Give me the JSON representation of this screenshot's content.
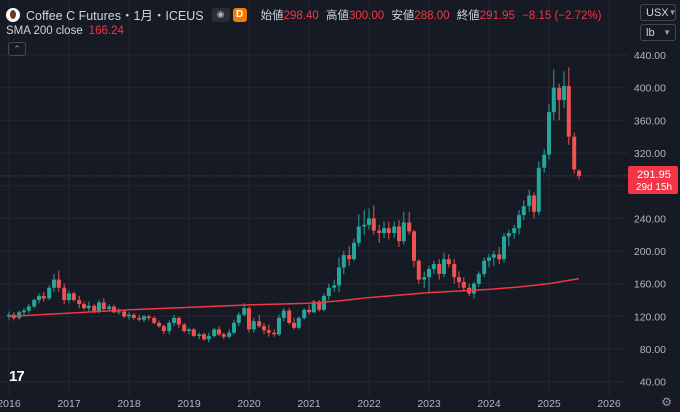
{
  "header": {
    "symbol_title": "Coffee C Futures・1月・ICEUS",
    "d_badge": "D",
    "ohlc": [
      {
        "label": "始値",
        "value": "298.40"
      },
      {
        "label": "高値",
        "value": "300.00"
      },
      {
        "label": "安値",
        "value": "288.00"
      },
      {
        "label": "終値",
        "value": "291.95"
      }
    ],
    "change": "−8.15 (−2.72%)"
  },
  "indicator": {
    "label": "SMA 200 close",
    "value": "166.24"
  },
  "axis_controls": {
    "currency": "USX",
    "unit": "lb"
  },
  "price_tag": {
    "value": "291.95",
    "countdown": "29d 15h"
  },
  "colors": {
    "up": "#26a69a",
    "down": "#ef5350",
    "sma": "#f23645",
    "background": "#161a25",
    "grid": "#222631"
  },
  "icons": {
    "symbol": "coffee-logo-icon",
    "eye": "eye-icon",
    "logo": "tradingview-logo-icon",
    "settings": "gear-icon",
    "collapse": "chevron-up-icon"
  },
  "logo_text": "17",
  "chart_data": {
    "type": "candlestick",
    "interval": "1 month",
    "y_ticks": [
      "440.00",
      "400.00",
      "360.00",
      "320.00",
      "280.00",
      "240.00",
      "200.00",
      "160.00",
      "120.00",
      "80.00",
      "40.00"
    ],
    "x_ticks": [
      "2016",
      "2017",
      "2018",
      "2019",
      "2020",
      "2021",
      "2022",
      "2023",
      "2024",
      "2025",
      "2026"
    ],
    "ylim": [
      20,
      460
    ],
    "grid": true,
    "series": [
      {
        "name": "Coffee C Futures",
        "candles": [
          [
            2016.0,
            120,
            126,
            116,
            122
          ],
          [
            2016.08,
            122,
            125,
            115,
            118
          ],
          [
            2016.17,
            118,
            127,
            116,
            125
          ],
          [
            2016.25,
            125,
            130,
            122,
            127
          ],
          [
            2016.33,
            127,
            135,
            124,
            132
          ],
          [
            2016.42,
            132,
            142,
            130,
            140
          ],
          [
            2016.5,
            140,
            148,
            136,
            145
          ],
          [
            2016.58,
            145,
            150,
            138,
            142
          ],
          [
            2016.67,
            142,
            158,
            140,
            155
          ],
          [
            2016.75,
            155,
            172,
            150,
            165
          ],
          [
            2016.83,
            165,
            176,
            150,
            155
          ],
          [
            2016.92,
            155,
            160,
            135,
            140
          ],
          [
            2017.0,
            140,
            152,
            136,
            148
          ],
          [
            2017.08,
            148,
            150,
            138,
            140
          ],
          [
            2017.17,
            140,
            145,
            130,
            135
          ],
          [
            2017.25,
            135,
            138,
            128,
            130
          ],
          [
            2017.33,
            130,
            138,
            126,
            133
          ],
          [
            2017.42,
            133,
            135,
            124,
            126
          ],
          [
            2017.5,
            126,
            140,
            124,
            137
          ],
          [
            2017.58,
            137,
            142,
            126,
            129
          ],
          [
            2017.67,
            129,
            135,
            126,
            132
          ],
          [
            2017.75,
            132,
            134,
            124,
            125
          ],
          [
            2017.83,
            125,
            130,
            122,
            126
          ],
          [
            2017.92,
            126,
            128,
            118,
            120
          ],
          [
            2018.0,
            120,
            125,
            116,
            122
          ],
          [
            2018.08,
            122,
            124,
            116,
            118
          ],
          [
            2018.17,
            118,
            122,
            114,
            116
          ],
          [
            2018.25,
            116,
            122,
            113,
            120
          ],
          [
            2018.33,
            120,
            122,
            115,
            118
          ],
          [
            2018.42,
            118,
            120,
            110,
            112
          ],
          [
            2018.5,
            112,
            115,
            106,
            108
          ],
          [
            2018.58,
            108,
            110,
            98,
            102
          ],
          [
            2018.67,
            102,
            115,
            98,
            112
          ],
          [
            2018.75,
            112,
            122,
            108,
            118
          ],
          [
            2018.83,
            118,
            120,
            106,
            110
          ],
          [
            2018.92,
            110,
            112,
            100,
            102
          ],
          [
            2019.0,
            102,
            106,
            98,
            104
          ],
          [
            2019.08,
            104,
            106,
            95,
            96
          ],
          [
            2019.17,
            96,
            100,
            92,
            98
          ],
          [
            2019.25,
            98,
            100,
            90,
            92
          ],
          [
            2019.33,
            92,
            100,
            88,
            96
          ],
          [
            2019.42,
            96,
            106,
            94,
            104
          ],
          [
            2019.5,
            104,
            108,
            96,
            98
          ],
          [
            2019.58,
            98,
            100,
            92,
            95
          ],
          [
            2019.67,
            95,
            104,
            93,
            100
          ],
          [
            2019.75,
            100,
            116,
            98,
            112
          ],
          [
            2019.83,
            112,
            125,
            108,
            122
          ],
          [
            2019.92,
            122,
            136,
            120,
            130
          ],
          [
            2020.0,
            130,
            132,
            100,
            104
          ],
          [
            2020.08,
            104,
            118,
            100,
            114
          ],
          [
            2020.17,
            114,
            122,
            106,
            108
          ],
          [
            2020.25,
            108,
            112,
            98,
            103
          ],
          [
            2020.33,
            103,
            110,
            95,
            100
          ],
          [
            2020.42,
            100,
            104,
            95,
            98
          ],
          [
            2020.5,
            98,
            122,
            96,
            118
          ],
          [
            2020.58,
            118,
            130,
            114,
            127
          ],
          [
            2020.67,
            127,
            130,
            110,
            112
          ],
          [
            2020.75,
            112,
            118,
            104,
            106
          ],
          [
            2020.83,
            106,
            120,
            104,
            118
          ],
          [
            2020.92,
            118,
            130,
            116,
            128
          ],
          [
            2021.0,
            128,
            134,
            122,
            125
          ],
          [
            2021.08,
            125,
            140,
            124,
            138
          ],
          [
            2021.17,
            138,
            140,
            126,
            128
          ],
          [
            2021.25,
            128,
            148,
            126,
            145
          ],
          [
            2021.33,
            145,
            160,
            140,
            155
          ],
          [
            2021.42,
            155,
            165,
            150,
            158
          ],
          [
            2021.5,
            158,
            192,
            150,
            180
          ],
          [
            2021.58,
            180,
            200,
            172,
            195
          ],
          [
            2021.67,
            195,
            206,
            182,
            190
          ],
          [
            2021.75,
            190,
            215,
            188,
            210
          ],
          [
            2021.83,
            210,
            245,
            205,
            230
          ],
          [
            2021.92,
            230,
            250,
            220,
            232
          ],
          [
            2022.0,
            232,
            252,
            226,
            240
          ],
          [
            2022.08,
            240,
            256,
            220,
            225
          ],
          [
            2022.17,
            225,
            232,
            210,
            222
          ],
          [
            2022.25,
            222,
            236,
            216,
            228
          ],
          [
            2022.33,
            228,
            236,
            214,
            222
          ],
          [
            2022.42,
            222,
            236,
            216,
            230
          ],
          [
            2022.5,
            230,
            238,
            205,
            212
          ],
          [
            2022.58,
            212,
            248,
            208,
            235
          ],
          [
            2022.67,
            235,
            248,
            220,
            224
          ],
          [
            2022.75,
            224,
            226,
            180,
            188
          ],
          [
            2022.83,
            188,
            190,
            160,
            165
          ],
          [
            2022.92,
            165,
            175,
            155,
            168
          ],
          [
            2023.0,
            168,
            182,
            150,
            178
          ],
          [
            2023.08,
            178,
            188,
            172,
            184
          ],
          [
            2023.17,
            184,
            190,
            165,
            172
          ],
          [
            2023.25,
            172,
            198,
            168,
            190
          ],
          [
            2023.33,
            190,
            196,
            180,
            184
          ],
          [
            2023.42,
            184,
            190,
            160,
            168
          ],
          [
            2023.5,
            168,
            175,
            155,
            162
          ],
          [
            2023.58,
            162,
            168,
            150,
            155
          ],
          [
            2023.67,
            155,
            160,
            145,
            148
          ],
          [
            2023.75,
            148,
            162,
            142,
            160
          ],
          [
            2023.83,
            160,
            175,
            156,
            172
          ],
          [
            2023.92,
            172,
            192,
            168,
            188
          ],
          [
            2024.0,
            188,
            196,
            180,
            192
          ],
          [
            2024.08,
            192,
            200,
            182,
            196
          ],
          [
            2024.17,
            196,
            205,
            184,
            190
          ],
          [
            2024.25,
            190,
            222,
            186,
            218
          ],
          [
            2024.33,
            218,
            226,
            206,
            222
          ],
          [
            2024.42,
            222,
            232,
            215,
            228
          ],
          [
            2024.5,
            228,
            250,
            220,
            244
          ],
          [
            2024.58,
            244,
            262,
            238,
            255
          ],
          [
            2024.67,
            255,
            275,
            248,
            268
          ],
          [
            2024.75,
            268,
            272,
            240,
            248
          ],
          [
            2024.83,
            248,
            310,
            244,
            302
          ],
          [
            2024.92,
            302,
            325,
            296,
            318
          ],
          [
            2025.0,
            318,
            380,
            312,
            370
          ],
          [
            2025.08,
            370,
            422,
            360,
            400
          ],
          [
            2025.17,
            400,
            405,
            360,
            385
          ],
          [
            2025.25,
            385,
            420,
            375,
            402
          ],
          [
            2025.33,
            402,
            425,
            330,
            340
          ],
          [
            2025.42,
            340,
            345,
            295,
            300
          ],
          [
            2025.5,
            298.4,
            300.0,
            288.0,
            291.95
          ]
        ]
      },
      {
        "name": "SMA 200 close",
        "points": [
          [
            2016.0,
            120
          ],
          [
            2017.0,
            124
          ],
          [
            2018.0,
            128
          ],
          [
            2019.0,
            131
          ],
          [
            2020.0,
            134
          ],
          [
            2021.0,
            136
          ],
          [
            2021.5,
            139
          ],
          [
            2022.0,
            143
          ],
          [
            2022.5,
            146
          ],
          [
            2023.0,
            149
          ],
          [
            2023.5,
            151
          ],
          [
            2024.0,
            153
          ],
          [
            2024.5,
            156
          ],
          [
            2025.0,
            160
          ],
          [
            2025.5,
            166.24
          ]
        ]
      }
    ]
  }
}
